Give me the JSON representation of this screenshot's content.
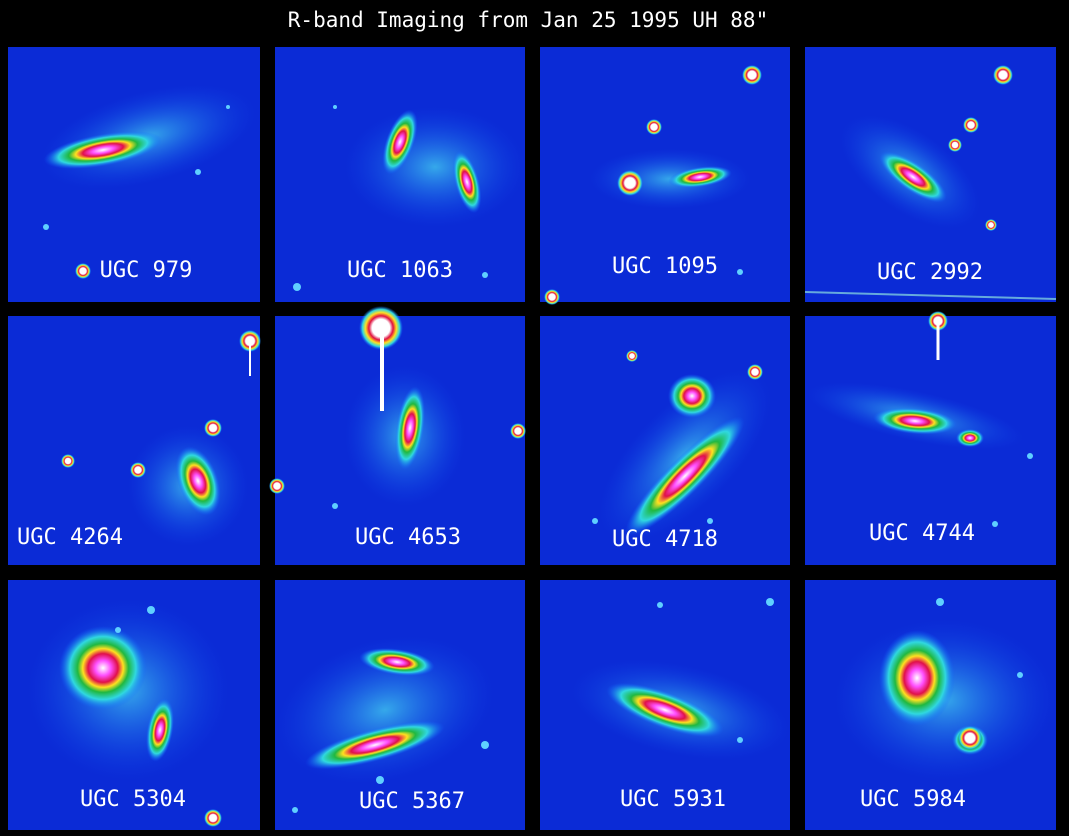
{
  "title": "R-band Imaging from Jan 25 1995 UH 88\"",
  "panels": [
    {
      "label": "UGC 979"
    },
    {
      "label": "UGC 1063"
    },
    {
      "label": "UGC 1095"
    },
    {
      "label": "UGC 2992"
    },
    {
      "label": "UGC 4264"
    },
    {
      "label": "UGC 4653"
    },
    {
      "label": "UGC 4718"
    },
    {
      "label": "UGC 4744"
    },
    {
      "label": "UGC 5304"
    },
    {
      "label": "UGC 5367"
    },
    {
      "label": "UGC 5931"
    },
    {
      "label": "UGC 5984"
    }
  ]
}
